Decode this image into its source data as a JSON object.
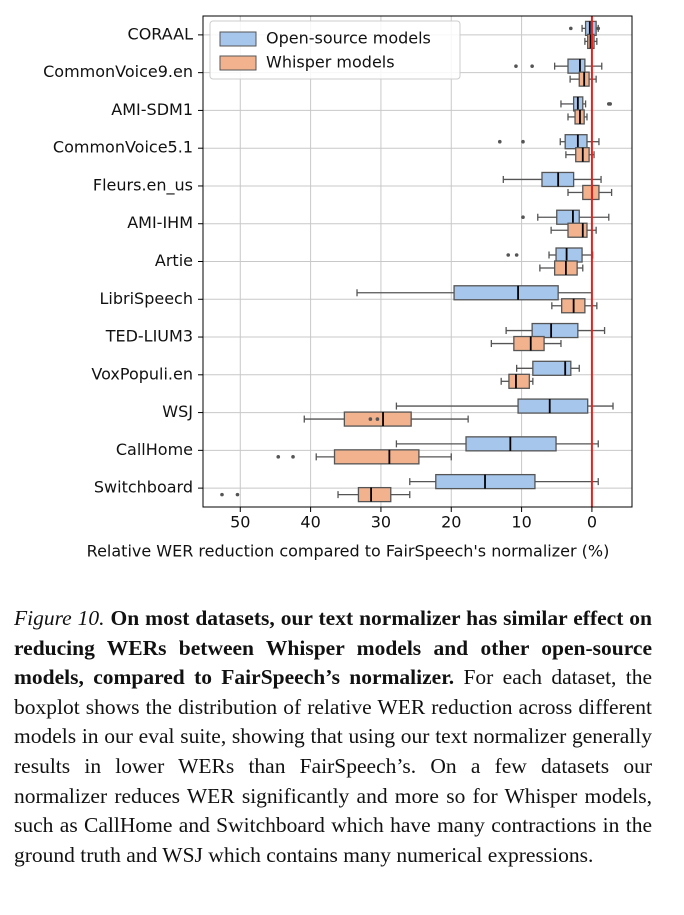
{
  "chart_data": {
    "type": "boxplot",
    "orientation": "horizontal",
    "x_label": "Relative WER reduction compared to FairSpeech's normalizer (%)",
    "categories": [
      "CORAAL",
      "CommonVoice9.en",
      "AMI-SDM1",
      "CommonVoice5.1",
      "Fleurs.en_us",
      "AMI-IHM",
      "Artie",
      "LibriSpeech",
      "TED-LIUM3",
      "VoxPopuli.en",
      "WSJ",
      "CallHome",
      "Switchboard"
    ],
    "xlim": [
      55.3,
      -5.7
    ],
    "xticks": [
      50,
      40,
      30,
      20,
      10,
      0
    ],
    "grid": true,
    "legend": "upper left",
    "reference_line": {
      "value": 0,
      "color": "#e8201c"
    },
    "series": [
      {
        "name": "Open-source models",
        "color": "#a6c6ec",
        "boxes": [
          {
            "whislo": -0.9,
            "q1": -0.6,
            "med": 0.3,
            "q3": 0.9,
            "whishi": 1.4,
            "fliers": [
              3.0,
              -0.9
            ]
          },
          {
            "whislo": -1.4,
            "q1": 1.0,
            "med": 1.7,
            "q3": 3.4,
            "whishi": 5.3,
            "fliers": [
              10.8,
              8.5
            ]
          },
          {
            "whislo": 0.9,
            "q1": 1.3,
            "med": 2.0,
            "q3": 2.6,
            "whishi": 4.4,
            "fliers": [
              -2.4,
              -2.6
            ]
          },
          {
            "whislo": -1.0,
            "q1": 0.7,
            "med": 2.0,
            "q3": 3.8,
            "whishi": 4.5,
            "fliers": [
              13.1,
              9.8
            ]
          },
          {
            "whislo": -1.3,
            "q1": 2.6,
            "med": 4.8,
            "q3": 7.1,
            "whishi": 12.6,
            "fliers": []
          },
          {
            "whislo": -2.4,
            "q1": 1.8,
            "med": 2.7,
            "q3": 5.0,
            "whishi": 7.7,
            "fliers": [
              9.8
            ]
          },
          {
            "whislo": -0.1,
            "q1": 1.4,
            "med": 3.6,
            "q3": 5.1,
            "whishi": 6.1,
            "fliers": [
              11.9,
              10.7
            ]
          },
          {
            "whislo": 0,
            "q1": 4.8,
            "med": 10.5,
            "q3": 19.6,
            "whishi": 33.4,
            "fliers": []
          },
          {
            "whislo": -1.8,
            "q1": 2.0,
            "med": 5.8,
            "q3": 8.5,
            "whishi": 12.2,
            "fliers": []
          },
          {
            "whislo": 1.8,
            "q1": 3.0,
            "med": 3.8,
            "q3": 8.4,
            "whishi": 10.7,
            "fliers": []
          },
          {
            "whislo": -3.0,
            "q1": 0.6,
            "med": 6.0,
            "q3": 10.5,
            "whishi": 27.8,
            "fliers": []
          },
          {
            "whislo": -0.9,
            "q1": 5.1,
            "med": 11.6,
            "q3": 17.9,
            "whishi": 27.8,
            "fliers": []
          },
          {
            "whislo": -0.9,
            "q1": 8.1,
            "med": 15.2,
            "q3": 22.2,
            "whishi": 25.9,
            "fliers": []
          }
        ]
      },
      {
        "name": "Whisper models",
        "color": "#f3b28e",
        "boxes": [
          {
            "whislo": -0.7,
            "q1": -0.3,
            "med": 0.2,
            "q3": 0.6,
            "whishi": 1.0,
            "fliers": []
          },
          {
            "whislo": -0.6,
            "q1": 0.4,
            "med": 1.1,
            "q3": 1.8,
            "whishi": 3.1,
            "fliers": []
          },
          {
            "whislo": 0.7,
            "q1": 1.1,
            "med": 1.7,
            "q3": 2.4,
            "whishi": 3.4,
            "fliers": []
          },
          {
            "whislo": -0.3,
            "q1": 0.4,
            "med": 1.3,
            "q3": 2.3,
            "whishi": 3.7,
            "fliers": []
          },
          {
            "whislo": -2.8,
            "q1": -1.0,
            "med": 0,
            "q3": 1.3,
            "whishi": 3.4,
            "fliers": []
          },
          {
            "whislo": -0.6,
            "q1": 0.7,
            "med": 1.3,
            "q3": 3.4,
            "whishi": 5.8,
            "fliers": []
          },
          {
            "whislo": 1.3,
            "q1": 2.1,
            "med": 3.7,
            "q3": 5.3,
            "whishi": 7.4,
            "fliers": []
          },
          {
            "whislo": -0.7,
            "q1": 1.0,
            "med": 2.6,
            "q3": 4.3,
            "whishi": 5.7,
            "fliers": []
          },
          {
            "whislo": 4.4,
            "q1": 6.8,
            "med": 8.7,
            "q3": 11.1,
            "whishi": 14.3,
            "fliers": []
          },
          {
            "whislo": 8.4,
            "q1": 8.9,
            "med": 10.8,
            "q3": 11.8,
            "whishi": 12.9,
            "fliers": []
          },
          {
            "whislo": 17.6,
            "q1": 25.7,
            "med": 29.7,
            "q3": 35.2,
            "whishi": 40.9,
            "fliers": [
              31.5,
              30.5
            ]
          },
          {
            "whislo": 20.0,
            "q1": 24.6,
            "med": 28.8,
            "q3": 36.6,
            "whishi": 39.2,
            "fliers": [
              44.6,
              42.5
            ]
          },
          {
            "whislo": 25.9,
            "q1": 28.6,
            "med": 31.4,
            "q3": 33.2,
            "whishi": 36.1,
            "fliers": [
              52.6,
              50.4
            ]
          }
        ]
      }
    ]
  },
  "caption": {
    "label": "Figure 10.",
    "bold": "On most datasets, our text normalizer has similar effect on reducing WERs between Whisper models and other open-source models, compared to FairSpeech’s normalizer.",
    "text": "For each dataset, the boxplot shows the distribution of relative WER reduction across different models in our eval suite, showing that using our text normalizer generally results in lower WERs than FairSpeech’s. On a few datasets our normalizer reduces WER significantly and more so for Whisper models, such as CallHome and Switchboard which have many contractions in the ground truth and WSJ which contains many numerical expressions."
  }
}
